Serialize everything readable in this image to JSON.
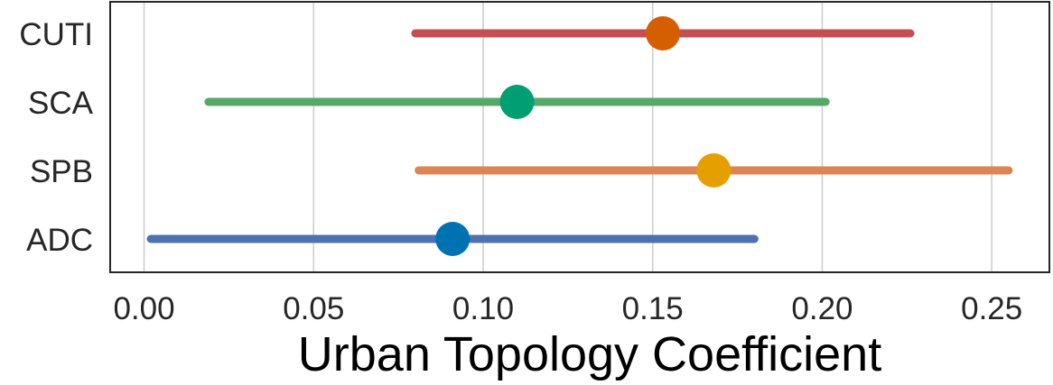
{
  "chart_data": {
    "type": "forest",
    "xlabel": "Urban Topology Coefficient",
    "ylabel": "",
    "title": "",
    "xlim": [
      -0.01,
      0.267
    ],
    "xticks": [
      0.0,
      0.05,
      0.1,
      0.15,
      0.2,
      0.25
    ],
    "xtick_labels": [
      "0.00",
      "0.05",
      "0.10",
      "0.15",
      "0.20",
      "0.25"
    ],
    "grid": true,
    "categories": [
      "CUTI",
      "SCA",
      "SPB",
      "ADC"
    ],
    "series": [
      {
        "label": "CUTI",
        "estimate": 0.153,
        "lower": 0.08,
        "upper": 0.226,
        "line_color": "#c44e52",
        "point_color": "#d55e00"
      },
      {
        "label": "SCA",
        "estimate": 0.11,
        "lower": 0.019,
        "upper": 0.201,
        "line_color": "#55a868",
        "point_color": "#009e73"
      },
      {
        "label": "SPB",
        "estimate": 0.168,
        "lower": 0.081,
        "upper": 0.255,
        "line_color": "#dd8452",
        "point_color": "#e69f00"
      },
      {
        "label": "ADC",
        "estimate": 0.091,
        "lower": 0.002,
        "upper": 0.18,
        "line_color": "#4c72b0",
        "point_color": "#0072b2"
      }
    ]
  }
}
